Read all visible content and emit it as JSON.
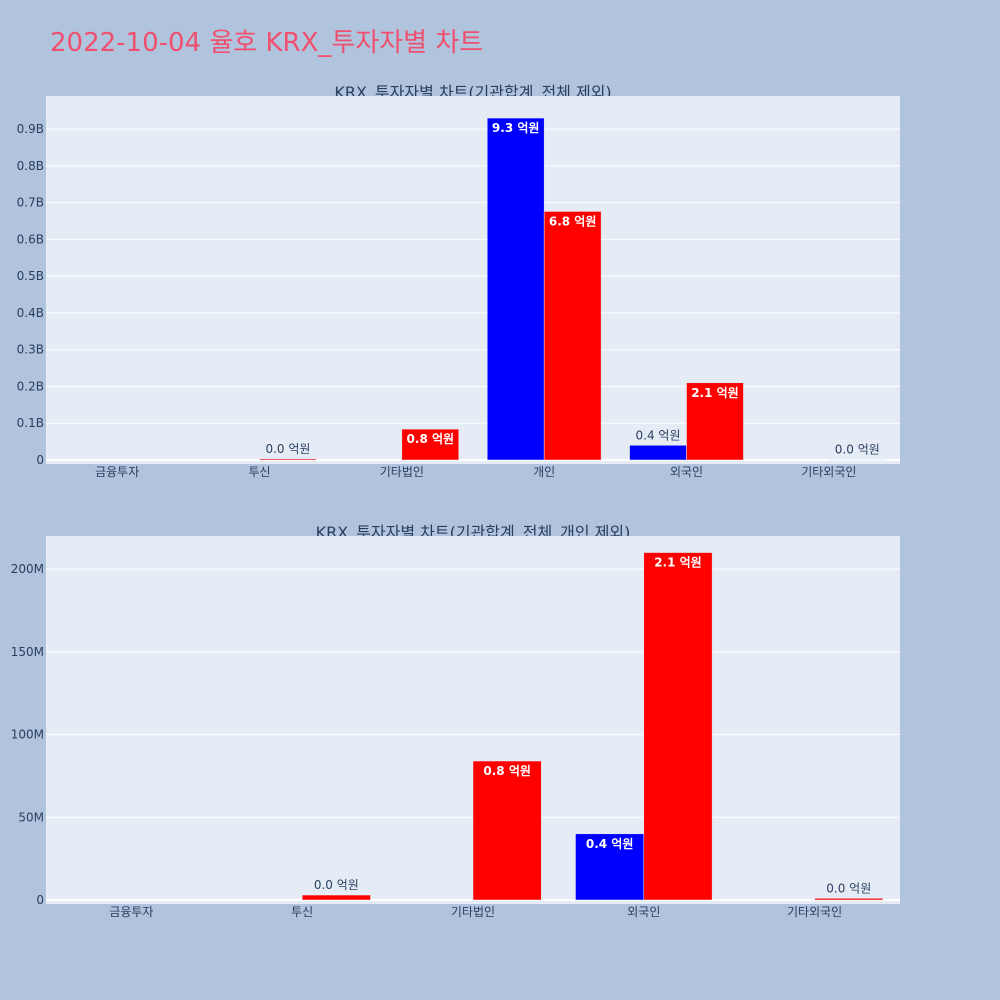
{
  "title": "2022-10-04 율호 KRX_투자자별 차트",
  "chart_data": [
    {
      "type": "bar",
      "title": "KRX_투자자별 차트(기관합계_전체 제외)",
      "categories": [
        "금융투자",
        "투신",
        "기타법인",
        "개인",
        "외국인",
        "기타외국인"
      ],
      "series": [
        {
          "color": "#0000ff",
          "values": [
            0,
            0,
            0,
            930000000,
            40000000,
            0
          ],
          "labels": [
            "",
            "",
            "",
            "9.3 억원",
            "0.4 억원",
            ""
          ]
        },
        {
          "color": "#ff0000",
          "values": [
            0,
            3000000,
            84000000,
            676000000,
            210000000,
            1000000
          ],
          "labels": [
            "",
            "0.0 억원",
            "0.8 억원",
            "6.8 억원",
            "2.1 억원",
            "0.0 억원"
          ]
        }
      ],
      "yticks": [
        "0",
        "0.1B",
        "0.2B",
        "0.3B",
        "0.4B",
        "0.5B",
        "0.6B",
        "0.7B",
        "0.8B",
        "0.9B"
      ],
      "ytick_values": [
        0,
        100000000,
        200000000,
        300000000,
        400000000,
        500000000,
        600000000,
        700000000,
        800000000,
        900000000
      ],
      "ylim": [
        0,
        990000000
      ],
      "grid": true,
      "background": "#e5ecf6"
    },
    {
      "type": "bar",
      "title": "KRX_투자자별 차트(기관합계_전체_개인 제외)",
      "categories": [
        "금융투자",
        "투신",
        "기타법인",
        "외국인",
        "기타외국인"
      ],
      "series": [
        {
          "color": "#0000ff",
          "values": [
            0,
            0,
            0,
            40000000,
            0
          ],
          "labels": [
            "",
            "",
            "",
            "0.4 억원",
            ""
          ]
        },
        {
          "color": "#ff0000",
          "values": [
            0,
            3000000,
            84000000,
            210000000,
            1000000
          ],
          "labels": [
            "",
            "0.0 억원",
            "0.8 억원",
            "2.1 억원",
            "0.0 억원"
          ]
        }
      ],
      "yticks": [
        "0",
        "50M",
        "100M",
        "150M",
        "200M"
      ],
      "ytick_values": [
        0,
        50000000,
        100000000,
        150000000,
        200000000
      ],
      "ylim": [
        0,
        220000000
      ],
      "grid": true,
      "background": "#e5ecf6"
    }
  ]
}
